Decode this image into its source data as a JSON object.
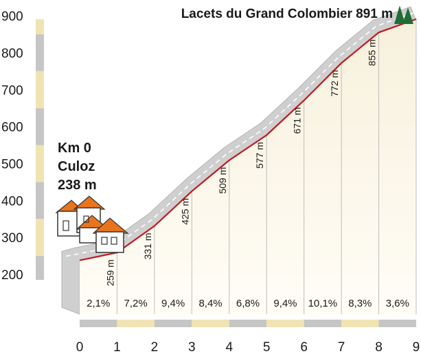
{
  "chart_data": {
    "type": "area",
    "title": "Lacets du Grand Colombier 891 m",
    "start": {
      "km": "Km 0",
      "place": "Culoz",
      "altitude": "238 m"
    },
    "x": [
      0,
      1,
      2,
      3,
      4,
      5,
      6,
      7,
      8,
      9
    ],
    "elevation": [
      238,
      259,
      331,
      425,
      509,
      577,
      671,
      772,
      855,
      891
    ],
    "altitude_labels": [
      "259 m",
      "331 m",
      "425 m",
      "509 m",
      "577 m",
      "671 m",
      "772 m",
      "855 m"
    ],
    "gradients": [
      "2,1%",
      "7,2%",
      "9,4%",
      "8,4%",
      "6,8%",
      "9,4%",
      "10,1%",
      "8,3%",
      "3,6%"
    ],
    "x_ticks": [
      "0",
      "1",
      "2",
      "3",
      "4",
      "5",
      "6",
      "7",
      "8",
      "9"
    ],
    "y_ticks": [
      "200",
      "300",
      "400",
      "500",
      "600",
      "700",
      "800",
      "900"
    ],
    "xlim": [
      0,
      9
    ],
    "ylim": [
      180,
      920
    ],
    "colors": {
      "road": "#cfcfcf",
      "road_edge": "#b5b5b5",
      "profile": "#c0181e",
      "fill_top": "#f7f0dc",
      "fill_bottom": "#fffdf6",
      "band_gray": "#c6c6c6",
      "band_cream": "#f1e4b4",
      "tree": "#1f6e35",
      "roof": "#e8741e"
    },
    "icons": [
      "village-houses-icon",
      "summit-trees-icon"
    ]
  }
}
